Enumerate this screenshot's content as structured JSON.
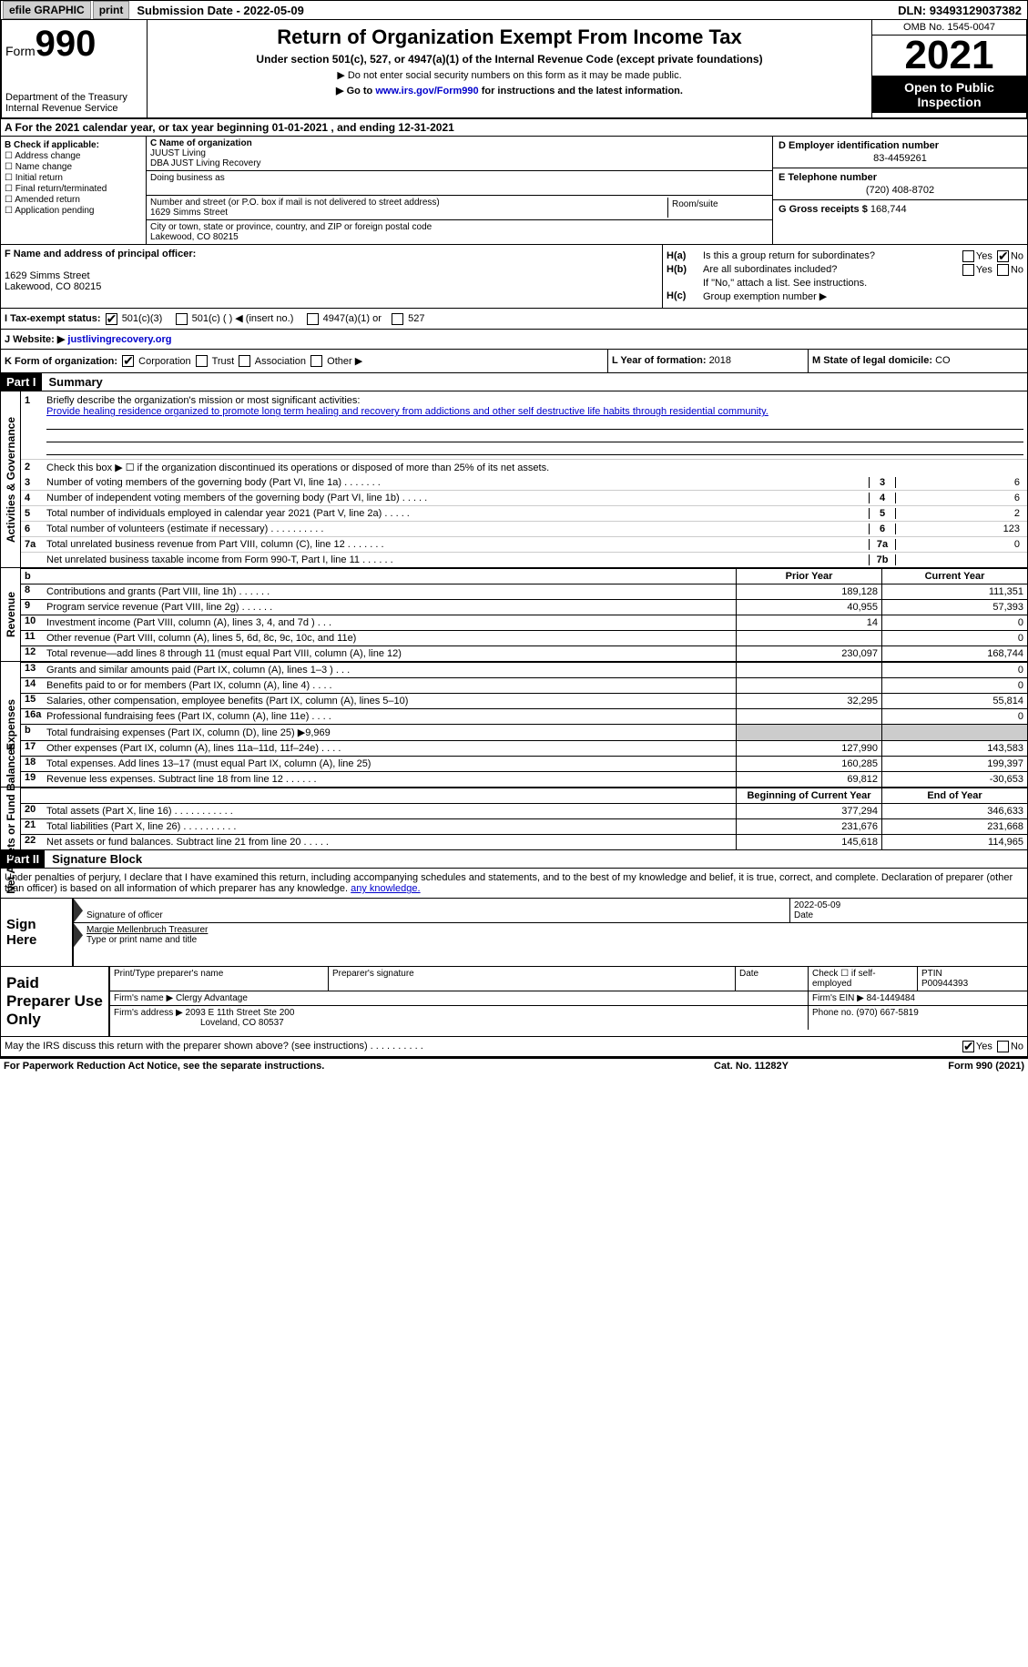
{
  "topbar": {
    "efile": "efile GRAPHIC",
    "print": "print",
    "subdate_lbl": "Submission Date - ",
    "subdate": "2022-05-09",
    "dln_lbl": "DLN: ",
    "dln": "93493129037382"
  },
  "hdr": {
    "form": "Form",
    "form990": "990",
    "dept1": "Department of the Treasury",
    "dept2": "Internal Revenue Service",
    "title": "Return of Organization Exempt From Income Tax",
    "sub1": "Under section 501(c), 527, or 4947(a)(1) of the Internal Revenue Code (except private foundations)",
    "sub2": "▶ Do not enter social security numbers on this form as it may be made public.",
    "sub3_pre": "▶ Go to ",
    "sub3_link": "www.irs.gov/Form990",
    "sub3_post": " for instructions and the latest information.",
    "omb": "OMB No. 1545-0047",
    "year": "2021",
    "open": "Open to Public Inspection"
  },
  "rowA": {
    "text_pre": "A For the 2021 calendar year, or tax year beginning ",
    "begin": "01-01-2021",
    "mid": "   , and ending ",
    "end": "12-31-2021"
  },
  "colB": {
    "hdr": "B Check if applicable:",
    "items": [
      "Address change",
      "Name change",
      "Initial return",
      "Final return/terminated",
      "Amended return",
      "Application pending"
    ]
  },
  "colC": {
    "name_lbl": "C Name of organization",
    "name1": "JUUST Living",
    "name2": "DBA JUST Living Recovery",
    "dba_lbl": "Doing business as",
    "addr_lbl": "Number and street (or P.O. box if mail is not delivered to street address)",
    "room_lbl": "Room/suite",
    "addr": "1629 Simms Street",
    "city_lbl": "City or town, state or province, country, and ZIP or foreign postal code",
    "city": "Lakewood, CO  80215"
  },
  "colD": {
    "ein_lbl": "D Employer identification number",
    "ein": "83-4459261",
    "tel_lbl": "E Telephone number",
    "tel": "(720) 408-8702",
    "gross_lbl": "G Gross receipts $ ",
    "gross": "168,744"
  },
  "rowF": {
    "lbl": "F Name and address of principal officer:",
    "addr1": "1629 Simms Street",
    "addr2": "Lakewood, CO  80215"
  },
  "rowH": {
    "ha_lbl": "H(a)",
    "ha_txt": "Is this a group return for subordinates?",
    "hb_lbl": "H(b)",
    "hb_txt": "Are all subordinates included?",
    "hb_note": "If \"No,\" attach a list. See instructions.",
    "hc_lbl": "H(c)",
    "hc_txt": "Group exemption number ▶",
    "yes": "Yes",
    "no": "No"
  },
  "rowI": {
    "lbl": "I  Tax-exempt status:",
    "o1": "501(c)(3)",
    "o2": "501(c) (   ) ◀ (insert no.)",
    "o3": "4947(a)(1) or",
    "o4": "527"
  },
  "rowJ": {
    "lbl": "J  Website: ▶  ",
    "url": "justlivingrecovery.org"
  },
  "rowK": {
    "lbl": "K Form of organization:",
    "o1": "Corporation",
    "o2": "Trust",
    "o3": "Association",
    "o4": "Other ▶"
  },
  "rowL": {
    "lbl": "L Year of formation: ",
    "val": "2018"
  },
  "rowM": {
    "lbl": "M State of legal domicile: ",
    "val": "CO"
  },
  "part1": {
    "hdr": "Part I",
    "title": "Summary"
  },
  "gov": {
    "label": "Activities & Governance",
    "l1_num": "1",
    "l1_txt": "Briefly describe the organization's mission or most significant activities:",
    "l1_val": "Provide healing residence organized to promote long term healing and recovery from addictions and other self destructive life habits through residential community.",
    "l2_num": "2",
    "l2_txt": "Check this box ▶ ☐  if the organization discontinued its operations or disposed of more than 25% of its net assets.",
    "rows": [
      {
        "n": "3",
        "t": "Number of voting members of the governing body (Part VI, line 1a)  .    .    .    .    .    .    .",
        "b": "3",
        "v": "6"
      },
      {
        "n": "4",
        "t": "Number of independent voting members of the governing body (Part VI, line 1b)  .    .    .    .    .",
        "b": "4",
        "v": "6"
      },
      {
        "n": "5",
        "t": "Total number of individuals employed in calendar year 2021 (Part V, line 2a)  .    .    .    .    .",
        "b": "5",
        "v": "2"
      },
      {
        "n": "6",
        "t": "Total number of volunteers (estimate if necessary)    .    .    .    .    .    .    .    .    .    .",
        "b": "6",
        "v": "123"
      },
      {
        "n": "7a",
        "t": "Total unrelated business revenue from Part VIII, column (C), line 12  .    .    .    .    .    .    .",
        "b": "7a",
        "v": "0"
      },
      {
        "n": "",
        "t": "Net unrelated business taxable income from Form 990-T, Part I, line 11  .    .    .    .    .    .",
        "b": "7b",
        "v": ""
      }
    ]
  },
  "revenue": {
    "label": "Revenue",
    "hdr_prior": "Prior Year",
    "hdr_curr": "Current Year",
    "rows": [
      {
        "n": "8",
        "t": "Contributions and grants (Part VIII, line 1h)   .    .    .    .    .    .",
        "p": "189,128",
        "c": "111,351"
      },
      {
        "n": "9",
        "t": "Program service revenue (Part VIII, line 2g)   .    .    .    .    .    .",
        "p": "40,955",
        "c": "57,393"
      },
      {
        "n": "10",
        "t": "Investment income (Part VIII, column (A), lines 3, 4, and 7d )    .    .    .",
        "p": "14",
        "c": "0"
      },
      {
        "n": "11",
        "t": "Other revenue (Part VIII, column (A), lines 5, 6d, 8c, 9c, 10c, and 11e)",
        "p": "",
        "c": "0"
      },
      {
        "n": "12",
        "t": "Total revenue—add lines 8 through 11 (must equal Part VIII, column (A), line 12)",
        "p": "230,097",
        "c": "168,744"
      }
    ]
  },
  "expenses": {
    "label": "Expenses",
    "rows": [
      {
        "n": "13",
        "t": "Grants and similar amounts paid (Part IX, column (A), lines 1–3 )   .    .    .",
        "p": "",
        "c": "0"
      },
      {
        "n": "14",
        "t": "Benefits paid to or for members (Part IX, column (A), line 4)  .    .    .    .",
        "p": "",
        "c": "0"
      },
      {
        "n": "15",
        "t": "Salaries, other compensation, employee benefits (Part IX, column (A), lines 5–10)",
        "p": "32,295",
        "c": "55,814"
      },
      {
        "n": "16a",
        "t": "Professional fundraising fees (Part IX, column (A), line 11e)   .    .    .    .",
        "p": "",
        "c": "0"
      },
      {
        "n": "b",
        "t": "Total fundraising expenses (Part IX, column (D), line 25) ▶9,969",
        "p": "shade",
        "c": "shade"
      },
      {
        "n": "17",
        "t": "Other expenses (Part IX, column (A), lines 11a–11d, 11f–24e)   .    .    .    .",
        "p": "127,990",
        "c": "143,583"
      },
      {
        "n": "18",
        "t": "Total expenses. Add lines 13–17 (must equal Part IX, column (A), line 25)",
        "p": "160,285",
        "c": "199,397"
      },
      {
        "n": "19",
        "t": "Revenue less expenses. Subtract line 18 from line 12  .    .    .    .    .    .",
        "p": "69,812",
        "c": "-30,653"
      }
    ]
  },
  "netassets": {
    "label": "Net Assets or Fund Balances",
    "hdr_begin": "Beginning of Current Year",
    "hdr_end": "End of Year",
    "rows": [
      {
        "n": "20",
        "t": "Total assets (Part X, line 16)  .    .    .    .    .    .    .    .    .    .    .",
        "p": "377,294",
        "c": "346,633"
      },
      {
        "n": "21",
        "t": "Total liabilities (Part X, line 26)  .    .    .    .    .    .    .    .    .    .",
        "p": "231,676",
        "c": "231,668"
      },
      {
        "n": "22",
        "t": "Net assets or fund balances. Subtract line 21 from line 20  .    .    .    .    .",
        "p": "145,618",
        "c": "114,965"
      }
    ]
  },
  "part2": {
    "hdr": "Part II",
    "title": "Signature Block"
  },
  "sigintro": "Under penalties of perjury, I declare that I have examined this return, including accompanying schedules and statements, and to the best of my knowledge and belief, it is true, correct, and complete. Declaration of preparer (other than officer) is based on all information of which preparer has any knowledge.",
  "sign": {
    "here": "Sign Here",
    "sig_lbl": "Signature of officer",
    "date_lbl": "Date",
    "date": "2022-05-09",
    "name": "Margie Mellenbruch  Treasurer",
    "name_lbl": "Type or print name and title"
  },
  "prep": {
    "left": "Paid Preparer Use Only",
    "r1_c1": "Print/Type preparer's name",
    "r1_c2": "Preparer's signature",
    "r1_c3": "Date",
    "r1_c4_lbl": "Check ☐ if self-employed",
    "r1_c5_lbl": "PTIN",
    "r1_c5": "P00944393",
    "r2_lbl": "Firm's name    ▶ ",
    "r2_val": "Clergy Advantage",
    "r2_ein_lbl": "Firm's EIN ▶ ",
    "r2_ein": "84-1449484",
    "r3_lbl": "Firm's address ▶ ",
    "r3_val1": "2093 E 11th Street Ste 200",
    "r3_val2": "Loveland, CO  80537",
    "r3_ph_lbl": "Phone no. ",
    "r3_ph": "(970) 667-5819"
  },
  "discuss": {
    "txt": "May the IRS discuss this return with the preparer shown above? (see instructions)   .    .    .    .    .    .    .    .    .    .",
    "yes": "Yes",
    "no": "No"
  },
  "bottom": {
    "l": "For Paperwork Reduction Act Notice, see the separate instructions.",
    "m": "Cat. No. 11282Y",
    "r": "Form 990 (2021)"
  }
}
